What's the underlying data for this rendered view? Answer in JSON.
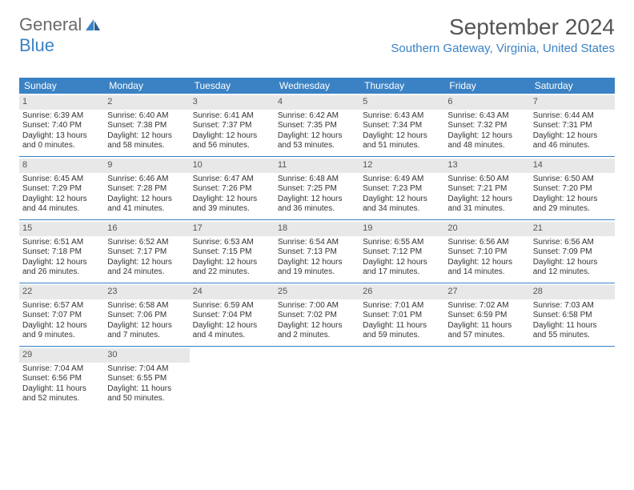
{
  "logo": {
    "text1": "General",
    "text2": "Blue"
  },
  "title": "September 2024",
  "location": "Southern Gateway, Virginia, United States",
  "header_bg": "#3b82c4",
  "daynum_bg": "#e8e8e8",
  "weekdays": [
    "Sunday",
    "Monday",
    "Tuesday",
    "Wednesday",
    "Thursday",
    "Friday",
    "Saturday"
  ],
  "weeks": [
    [
      {
        "n": "1",
        "sr": "Sunrise: 6:39 AM",
        "ss": "Sunset: 7:40 PM",
        "dl": "Daylight: 13 hours and 0 minutes."
      },
      {
        "n": "2",
        "sr": "Sunrise: 6:40 AM",
        "ss": "Sunset: 7:38 PM",
        "dl": "Daylight: 12 hours and 58 minutes."
      },
      {
        "n": "3",
        "sr": "Sunrise: 6:41 AM",
        "ss": "Sunset: 7:37 PM",
        "dl": "Daylight: 12 hours and 56 minutes."
      },
      {
        "n": "4",
        "sr": "Sunrise: 6:42 AM",
        "ss": "Sunset: 7:35 PM",
        "dl": "Daylight: 12 hours and 53 minutes."
      },
      {
        "n": "5",
        "sr": "Sunrise: 6:43 AM",
        "ss": "Sunset: 7:34 PM",
        "dl": "Daylight: 12 hours and 51 minutes."
      },
      {
        "n": "6",
        "sr": "Sunrise: 6:43 AM",
        "ss": "Sunset: 7:32 PM",
        "dl": "Daylight: 12 hours and 48 minutes."
      },
      {
        "n": "7",
        "sr": "Sunrise: 6:44 AM",
        "ss": "Sunset: 7:31 PM",
        "dl": "Daylight: 12 hours and 46 minutes."
      }
    ],
    [
      {
        "n": "8",
        "sr": "Sunrise: 6:45 AM",
        "ss": "Sunset: 7:29 PM",
        "dl": "Daylight: 12 hours and 44 minutes."
      },
      {
        "n": "9",
        "sr": "Sunrise: 6:46 AM",
        "ss": "Sunset: 7:28 PM",
        "dl": "Daylight: 12 hours and 41 minutes."
      },
      {
        "n": "10",
        "sr": "Sunrise: 6:47 AM",
        "ss": "Sunset: 7:26 PM",
        "dl": "Daylight: 12 hours and 39 minutes."
      },
      {
        "n": "11",
        "sr": "Sunrise: 6:48 AM",
        "ss": "Sunset: 7:25 PM",
        "dl": "Daylight: 12 hours and 36 minutes."
      },
      {
        "n": "12",
        "sr": "Sunrise: 6:49 AM",
        "ss": "Sunset: 7:23 PM",
        "dl": "Daylight: 12 hours and 34 minutes."
      },
      {
        "n": "13",
        "sr": "Sunrise: 6:50 AM",
        "ss": "Sunset: 7:21 PM",
        "dl": "Daylight: 12 hours and 31 minutes."
      },
      {
        "n": "14",
        "sr": "Sunrise: 6:50 AM",
        "ss": "Sunset: 7:20 PM",
        "dl": "Daylight: 12 hours and 29 minutes."
      }
    ],
    [
      {
        "n": "15",
        "sr": "Sunrise: 6:51 AM",
        "ss": "Sunset: 7:18 PM",
        "dl": "Daylight: 12 hours and 26 minutes."
      },
      {
        "n": "16",
        "sr": "Sunrise: 6:52 AM",
        "ss": "Sunset: 7:17 PM",
        "dl": "Daylight: 12 hours and 24 minutes."
      },
      {
        "n": "17",
        "sr": "Sunrise: 6:53 AM",
        "ss": "Sunset: 7:15 PM",
        "dl": "Daylight: 12 hours and 22 minutes."
      },
      {
        "n": "18",
        "sr": "Sunrise: 6:54 AM",
        "ss": "Sunset: 7:13 PM",
        "dl": "Daylight: 12 hours and 19 minutes."
      },
      {
        "n": "19",
        "sr": "Sunrise: 6:55 AM",
        "ss": "Sunset: 7:12 PM",
        "dl": "Daylight: 12 hours and 17 minutes."
      },
      {
        "n": "20",
        "sr": "Sunrise: 6:56 AM",
        "ss": "Sunset: 7:10 PM",
        "dl": "Daylight: 12 hours and 14 minutes."
      },
      {
        "n": "21",
        "sr": "Sunrise: 6:56 AM",
        "ss": "Sunset: 7:09 PM",
        "dl": "Daylight: 12 hours and 12 minutes."
      }
    ],
    [
      {
        "n": "22",
        "sr": "Sunrise: 6:57 AM",
        "ss": "Sunset: 7:07 PM",
        "dl": "Daylight: 12 hours and 9 minutes."
      },
      {
        "n": "23",
        "sr": "Sunrise: 6:58 AM",
        "ss": "Sunset: 7:06 PM",
        "dl": "Daylight: 12 hours and 7 minutes."
      },
      {
        "n": "24",
        "sr": "Sunrise: 6:59 AM",
        "ss": "Sunset: 7:04 PM",
        "dl": "Daylight: 12 hours and 4 minutes."
      },
      {
        "n": "25",
        "sr": "Sunrise: 7:00 AM",
        "ss": "Sunset: 7:02 PM",
        "dl": "Daylight: 12 hours and 2 minutes."
      },
      {
        "n": "26",
        "sr": "Sunrise: 7:01 AM",
        "ss": "Sunset: 7:01 PM",
        "dl": "Daylight: 11 hours and 59 minutes."
      },
      {
        "n": "27",
        "sr": "Sunrise: 7:02 AM",
        "ss": "Sunset: 6:59 PM",
        "dl": "Daylight: 11 hours and 57 minutes."
      },
      {
        "n": "28",
        "sr": "Sunrise: 7:03 AM",
        "ss": "Sunset: 6:58 PM",
        "dl": "Daylight: 11 hours and 55 minutes."
      }
    ],
    [
      {
        "n": "29",
        "sr": "Sunrise: 7:04 AM",
        "ss": "Sunset: 6:56 PM",
        "dl": "Daylight: 11 hours and 52 minutes."
      },
      {
        "n": "30",
        "sr": "Sunrise: 7:04 AM",
        "ss": "Sunset: 6:55 PM",
        "dl": "Daylight: 11 hours and 50 minutes."
      },
      null,
      null,
      null,
      null,
      null
    ]
  ]
}
